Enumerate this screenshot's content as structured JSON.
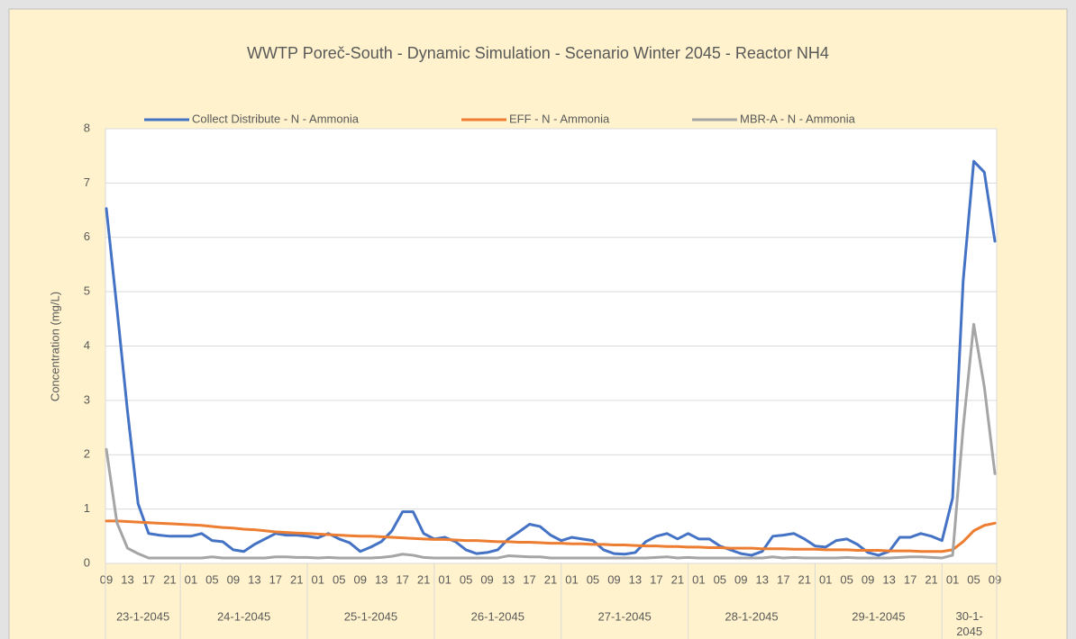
{
  "chart_data": {
    "type": "line",
    "title": "WWTP Poreč-South - Dynamic Simulation - Scenario Winter 2045 - Reactor NH4",
    "y_label": "Concentration (mg/L)",
    "categories": [
      "09",
      null,
      "13",
      null,
      "17",
      null,
      "21",
      null,
      "01",
      null,
      "05",
      null,
      "09",
      null,
      "13",
      null,
      "17",
      null,
      "21",
      null,
      "01",
      null,
      "05",
      null,
      "09",
      null,
      "13",
      null,
      "17",
      null,
      "21",
      null,
      "01",
      null,
      "05",
      null,
      "09",
      null,
      "13",
      null,
      "17",
      null,
      "21",
      null,
      "01",
      null,
      "05",
      null,
      "09",
      null,
      "13",
      null,
      "17",
      null,
      "21",
      null,
      "01",
      null,
      "05",
      null,
      "09",
      null,
      "13",
      null,
      "17",
      null,
      "21",
      null,
      "01",
      null,
      "05",
      null,
      "09",
      null,
      "13",
      null,
      "17",
      null,
      "21",
      null,
      "01",
      null,
      "05",
      null,
      "09"
    ],
    "day_labels": [
      "23-1-2045",
      "24-1-2045",
      "25-1-2045",
      "26-1-2045",
      "27-1-2045",
      "28-1-2045",
      "29-1-2045",
      "30-1-2045"
    ],
    "series": [
      {
        "name": "Collect Distribute - N - Ammonia",
        "color": "#4472c4",
        "values": [
          6.53,
          4.7,
          2.8,
          1.1,
          0.55,
          0.52,
          0.5,
          0.5,
          0.5,
          0.55,
          0.42,
          0.4,
          0.25,
          0.22,
          0.35,
          0.45,
          0.55,
          0.52,
          0.52,
          0.5,
          0.47,
          0.55,
          0.45,
          0.38,
          0.22,
          0.3,
          0.4,
          0.6,
          0.95,
          0.95,
          0.55,
          0.45,
          0.48,
          0.4,
          0.25,
          0.18,
          0.2,
          0.25,
          0.45,
          0.58,
          0.72,
          0.68,
          0.52,
          0.42,
          0.48,
          0.45,
          0.42,
          0.25,
          0.18,
          0.17,
          0.2,
          0.4,
          0.5,
          0.55,
          0.45,
          0.55,
          0.45,
          0.45,
          0.32,
          0.25,
          0.18,
          0.15,
          0.22,
          0.5,
          0.52,
          0.55,
          0.45,
          0.32,
          0.3,
          0.42,
          0.45,
          0.35,
          0.2,
          0.15,
          0.22,
          0.48,
          0.48,
          0.55,
          0.5,
          0.42,
          1.2,
          5.2,
          7.4,
          7.2,
          5.93
        ]
      },
      {
        "name": "EFF - N - Ammonia",
        "color": "#ed7d31",
        "values": [
          0.78,
          0.78,
          0.77,
          0.76,
          0.75,
          0.74,
          0.73,
          0.72,
          0.71,
          0.7,
          0.68,
          0.66,
          0.65,
          0.63,
          0.62,
          0.6,
          0.58,
          0.57,
          0.56,
          0.55,
          0.54,
          0.53,
          0.52,
          0.51,
          0.5,
          0.5,
          0.49,
          0.48,
          0.47,
          0.46,
          0.45,
          0.44,
          0.44,
          0.43,
          0.42,
          0.42,
          0.41,
          0.4,
          0.4,
          0.39,
          0.39,
          0.38,
          0.37,
          0.37,
          0.36,
          0.36,
          0.35,
          0.35,
          0.34,
          0.34,
          0.33,
          0.32,
          0.32,
          0.31,
          0.31,
          0.3,
          0.3,
          0.29,
          0.29,
          0.28,
          0.28,
          0.28,
          0.27,
          0.27,
          0.27,
          0.26,
          0.26,
          0.26,
          0.25,
          0.25,
          0.25,
          0.24,
          0.24,
          0.24,
          0.23,
          0.23,
          0.23,
          0.22,
          0.22,
          0.22,
          0.25,
          0.4,
          0.6,
          0.7,
          0.74
        ]
      },
      {
        "name": "MBR-A - N - Ammonia",
        "color": "#a5a5a5",
        "values": [
          2.1,
          0.75,
          0.28,
          0.18,
          0.1,
          0.1,
          0.1,
          0.1,
          0.1,
          0.1,
          0.12,
          0.1,
          0.1,
          0.1,
          0.1,
          0.1,
          0.12,
          0.12,
          0.11,
          0.11,
          0.1,
          0.11,
          0.1,
          0.1,
          0.1,
          0.1,
          0.11,
          0.13,
          0.17,
          0.15,
          0.11,
          0.1,
          0.1,
          0.1,
          0.1,
          0.1,
          0.1,
          0.1,
          0.14,
          0.13,
          0.12,
          0.12,
          0.1,
          0.1,
          0.1,
          0.1,
          0.1,
          0.1,
          0.1,
          0.1,
          0.1,
          0.1,
          0.11,
          0.12,
          0.1,
          0.11,
          0.1,
          0.1,
          0.1,
          0.1,
          0.1,
          0.1,
          0.1,
          0.12,
          0.1,
          0.11,
          0.1,
          0.1,
          0.1,
          0.1,
          0.11,
          0.1,
          0.1,
          0.1,
          0.1,
          0.11,
          0.12,
          0.12,
          0.11,
          0.1,
          0.15,
          2.5,
          4.4,
          3.25,
          1.65
        ]
      }
    ],
    "ylim": [
      0,
      8
    ],
    "yticks": [
      0,
      1,
      2,
      3,
      4,
      5,
      6,
      7,
      8
    ],
    "grid": true,
    "legend": "top"
  }
}
